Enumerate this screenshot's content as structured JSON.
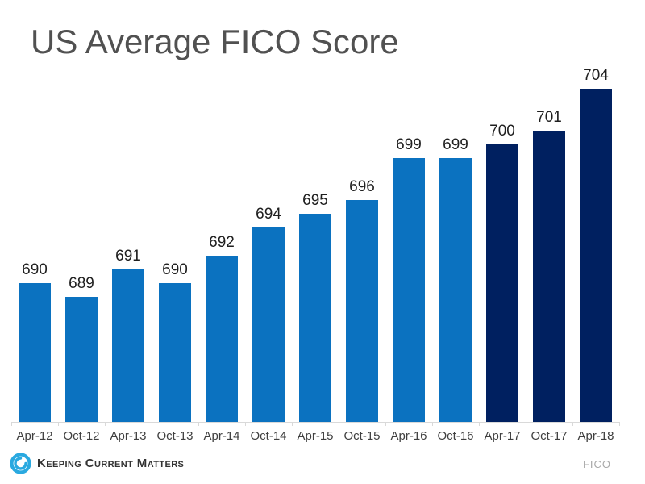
{
  "title": "US Average FICO Score",
  "chart_data": {
    "type": "bar",
    "title": "US Average FICO Score",
    "categories": [
      "Apr-12",
      "Oct-12",
      "Apr-13",
      "Oct-13",
      "Apr-14",
      "Oct-14",
      "Apr-15",
      "Oct-15",
      "Apr-16",
      "Oct-16",
      "Apr-17",
      "Oct-17",
      "Apr-18"
    ],
    "values": [
      690,
      689,
      691,
      690,
      692,
      694,
      695,
      696,
      699,
      699,
      700,
      701,
      704
    ],
    "bar_styles": [
      "light",
      "light",
      "light",
      "light",
      "light",
      "light",
      "light",
      "light",
      "light",
      "light",
      "dark",
      "dark",
      "dark"
    ],
    "value_labels_shown": true,
    "xlabel": "",
    "ylabel": "",
    "ylim": [
      680,
      706
    ],
    "grid": false,
    "legend": false
  },
  "colors": {
    "light_bar": "#0B72C0",
    "dark_bar": "#002060",
    "title_text": "#515151",
    "value_label_text": "#1F1F1F",
    "axis_label_text": "#404040",
    "axis_line": "#D9D9D9",
    "brand_logo_blue": "#2AA9E0",
    "brand_text": "#333333",
    "source_text": "#A9A9A9",
    "background": "#FFFFFF"
  },
  "footer": {
    "brand": "Keeping Current Matters",
    "source": "FICO"
  }
}
